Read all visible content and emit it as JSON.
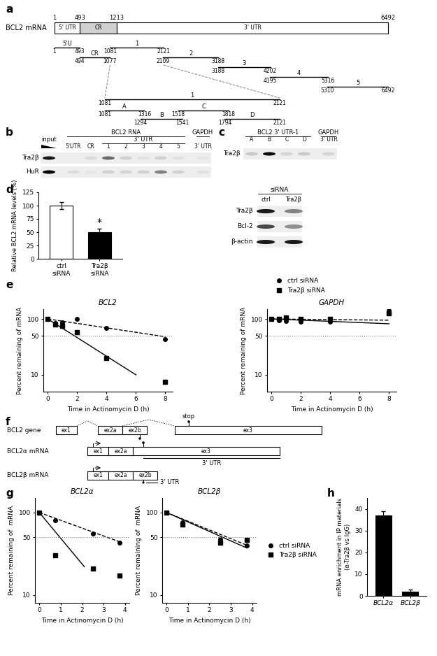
{
  "panel_labels": [
    "a",
    "b",
    "c",
    "d",
    "e",
    "f",
    "g",
    "h"
  ],
  "diagram_a": {
    "title": "BCL2 mRNA",
    "length": 6492,
    "boundary_labels": [
      1,
      493,
      1213,
      6492
    ],
    "regions": [
      {
        "label": "5' UTR",
        "start": 1,
        "end": 493
      },
      {
        "label": "CR",
        "start": 493,
        "end": 1213
      },
      {
        "label": "3' UTR",
        "start": 1213,
        "end": 6492
      }
    ],
    "fragments": [
      {
        "label": "5'U",
        "start": 1,
        "end": 493
      },
      {
        "label": "CR",
        "start": 494,
        "end": 1077
      },
      {
        "label": "1",
        "start": 1081,
        "end": 2121
      },
      {
        "label": "2",
        "start": 2109,
        "end": 3188
      },
      {
        "label": "3",
        "start": 3188,
        "end": 4202
      },
      {
        "label": "4",
        "start": 4195,
        "end": 5316
      },
      {
        "label": "5",
        "start": 5310,
        "end": 6492
      }
    ],
    "zoom": {
      "label": "1",
      "start": 1081,
      "end": 2121,
      "fragments": [
        {
          "label": "A",
          "start": 1081,
          "end": 1316
        },
        {
          "label": "B",
          "start": 1294,
          "end": 1541
        },
        {
          "label": "C",
          "start": 1518,
          "end": 1818
        },
        {
          "label": "D",
          "start": 1794,
          "end": 2121
        }
      ]
    }
  },
  "blot_b": {
    "lanes": [
      {
        "label": "input"
      },
      {
        "label": "5'UTR",
        "gene": "BCL2 RNA"
      },
      {
        "label": "CR",
        "gene": "BCL2 RNA"
      },
      {
        "label": "1",
        "gene": "BCL2 RNA",
        "group": "3' UTR"
      },
      {
        "label": "2",
        "gene": "BCL2 RNA",
        "group": "3' UTR"
      },
      {
        "label": "3",
        "gene": "BCL2 RNA",
        "group": "3' UTR"
      },
      {
        "label": "4",
        "gene": "BCL2 RNA",
        "group": "3' UTR"
      },
      {
        "label": "5",
        "gene": "BCL2 RNA",
        "group": "3' UTR"
      },
      {
        "label": "3' UTR",
        "gene": "GAPDH"
      }
    ],
    "rows": [
      {
        "label": "Tra2β",
        "bands": [
          0.9,
          0,
          0.08,
          0.55,
          0.12,
          0.05,
          0.12,
          0.05,
          0.03
        ]
      },
      {
        "label": "HuR",
        "bands": [
          1,
          0.08,
          0.03,
          0.12,
          0.1,
          0.12,
          0.45,
          0.12,
          0.05
        ]
      }
    ]
  },
  "blot_c": {
    "lanes": [
      {
        "label": "A",
        "gene": "BCL2 3' UTR-1"
      },
      {
        "label": "B",
        "gene": "BCL2 3' UTR-1"
      },
      {
        "label": "C",
        "gene": "BCL2 3' UTR-1"
      },
      {
        "label": "D",
        "gene": "BCL2 3' UTR-1"
      },
      {
        "label": "3' UTR",
        "gene": "GAPDH"
      }
    ],
    "rows": [
      {
        "label": "Tra2β",
        "bands": [
          0.15,
          0.95,
          0.1,
          0.15,
          0.1
        ]
      }
    ]
  },
  "blot_d": {
    "header": "siRNA",
    "lanes": [
      "ctrl",
      "Tra2β"
    ],
    "rows": [
      {
        "label": "Tra2β",
        "bands": [
          0.9,
          0.45
        ]
      },
      {
        "label": "Bcl-2",
        "bands": [
          0.7,
          0.4
        ]
      },
      {
        "label": "β-actin",
        "bands": [
          0.9,
          0.9
        ]
      }
    ]
  },
  "diagram_f": {
    "gene": {
      "label": "BCL2 gene",
      "exons": [
        "ex1",
        "ex2a",
        "ex2b",
        "ex3"
      ]
    },
    "stop_label": "stop",
    "transcripts": [
      {
        "label": "BCL2α mRNA",
        "exons": [
          "ex1",
          "ex2a",
          "ex3"
        ],
        "utr_label": "3' UTR"
      },
      {
        "label": "BCL2β mRNA",
        "exons": [
          "ex1",
          "ex2a",
          "ex2b"
        ],
        "utr_label": "3' UTR"
      }
    ]
  },
  "chart_data": [
    {
      "type": "bar",
      "categories": [
        "ctrl\nsiRNA",
        "Tra2β\nsiRNA"
      ],
      "values": [
        100,
        50
      ],
      "errors": [
        6,
        7
      ],
      "colors": [
        "#ffffff",
        "#000000"
      ],
      "ylabel": "Relative BCL2 mRNA levels (%)",
      "ylim": [
        0,
        125
      ],
      "yticks": [
        0,
        25,
        50,
        75,
        100,
        125
      ],
      "annotations": [
        {
          "category": "Tra2β\nsiRNA",
          "text": "*"
        }
      ]
    },
    {
      "type": "line",
      "title": "BCL2",
      "xlabel": "Time in Actinomycin D (h)",
      "ylabel": "Percent remaining of mRNA",
      "log": "y",
      "xlim": [
        -0.3,
        8.5
      ],
      "ylim": [
        5,
        150
      ],
      "xticks": [
        0,
        2,
        4,
        6,
        8
      ],
      "yticks": [
        10,
        50,
        100
      ],
      "reference_line": 50,
      "series": [
        {
          "name": "ctrl siRNA",
          "color": "#000000",
          "marker": "circle",
          "line_style": "dashed",
          "x": [
            0,
            0.5,
            1,
            2,
            4,
            8
          ],
          "values": [
            100,
            85,
            88,
            100,
            68,
            43
          ],
          "fit": {
            "x": [
              0,
              8
            ],
            "values": [
              100,
              48
            ]
          }
        },
        {
          "name": "Tra2β siRNA",
          "color": "#000000",
          "marker": "square",
          "line_style": "solid",
          "x": [
            0,
            0.5,
            1,
            2,
            4,
            8
          ],
          "values": [
            100,
            80,
            75,
            58,
            20,
            7.5
          ],
          "fit": {
            "x": [
              0,
              6
            ],
            "values": [
              100,
              10
            ]
          }
        }
      ]
    },
    {
      "type": "line",
      "title": "GAPDH",
      "xlabel": "Time in Actinomycin D (h)",
      "ylabel": "Percent remaining of mRNA",
      "log": "y",
      "xlim": [
        -0.3,
        8.5
      ],
      "ylim": [
        5,
        150
      ],
      "xticks": [
        0,
        2,
        4,
        6,
        8
      ],
      "yticks": [
        10,
        50,
        100
      ],
      "reference_line": 50,
      "legend": "lower left",
      "series": [
        {
          "name": "ctrl siRNA",
          "color": "#000000",
          "marker": "circle",
          "line_style": "dashed",
          "x": [
            0,
            0.5,
            1,
            2,
            4,
            8
          ],
          "values": [
            100,
            95,
            92,
            90,
            90,
            140
          ],
          "fit": {
            "x": [
              0,
              8
            ],
            "values": [
              100,
              95
            ]
          }
        },
        {
          "name": "Tra2β siRNA",
          "color": "#000000",
          "marker": "square",
          "line_style": "solid",
          "x": [
            0,
            0.5,
            1,
            2,
            4,
            8
          ],
          "values": [
            100,
            100,
            105,
            100,
            100,
            125
          ],
          "fit": {
            "x": [
              0,
              8
            ],
            "values": [
              100,
              82
            ]
          }
        }
      ]
    },
    {
      "type": "line",
      "title": "BCL2α",
      "xlabel": "Time in Actinomycin D (h)",
      "ylabel": "Percent remaining of  mRNA",
      "log": "y",
      "xlim": [
        -0.2,
        4.2
      ],
      "ylim": [
        8,
        150
      ],
      "xticks": [
        0,
        1,
        2,
        3,
        4
      ],
      "yticks": [
        10,
        50,
        100
      ],
      "reference_line": 50,
      "series": [
        {
          "name": "ctrl siRNA",
          "color": "#000000",
          "marker": "circle",
          "line_style": "dashed",
          "x": [
            0,
            0.75,
            2.5,
            3.75
          ],
          "values": [
            100,
            80,
            55,
            43
          ],
          "fit": {
            "x": [
              0,
              3.75
            ],
            "values": [
              100,
              44
            ]
          }
        },
        {
          "name": "Tra2β siRNA",
          "color": "#000000",
          "marker": "square",
          "line_style": "solid",
          "x": [
            0,
            0.75,
            2.5,
            3.75
          ],
          "values": [
            100,
            30,
            21,
            17
          ],
          "fit": {
            "x": [
              0,
              2.1
            ],
            "values": [
              100,
              22
            ]
          }
        }
      ]
    },
    {
      "type": "line",
      "title": "BCL2β",
      "xlabel": "Time in Actinomycin D (h)",
      "ylabel": "Percent remaining of  mRNA",
      "log": "y",
      "xlim": [
        -0.2,
        4.2
      ],
      "ylim": [
        8,
        150
      ],
      "xticks": [
        0,
        1,
        2,
        3,
        4
      ],
      "yticks": [
        10,
        50,
        100
      ],
      "reference_line": 50,
      "legend": "center left",
      "series": [
        {
          "name": "ctrl siRNA",
          "color": "#000000",
          "marker": "circle",
          "line_style": "dashed",
          "x": [
            0,
            0.75,
            2.5,
            3.75
          ],
          "values": [
            100,
            75,
            47,
            40
          ],
          "fit": {
            "x": [
              0,
              3.75
            ],
            "values": [
              100,
              40
            ]
          }
        },
        {
          "name": "Tra2β siRNA",
          "color": "#000000",
          "marker": "square",
          "line_style": "solid",
          "x": [
            0,
            0.75,
            2.5,
            3.75
          ],
          "values": [
            100,
            72,
            43,
            46
          ],
          "fit": {
            "x": [
              0,
              3.75
            ],
            "values": [
              100,
              37
            ]
          }
        }
      ]
    },
    {
      "type": "bar",
      "categories": [
        "BCL2α",
        "BCL2β"
      ],
      "values": [
        37,
        2
      ],
      "errors": [
        2,
        0.8
      ],
      "color": "#000000",
      "ylabel": "mRNA enrichment in IP materials\n(α-Tra2β vs IgG)",
      "ylim": [
        0,
        45
      ],
      "yticks": [
        0,
        10,
        20,
        30,
        40
      ]
    }
  ]
}
